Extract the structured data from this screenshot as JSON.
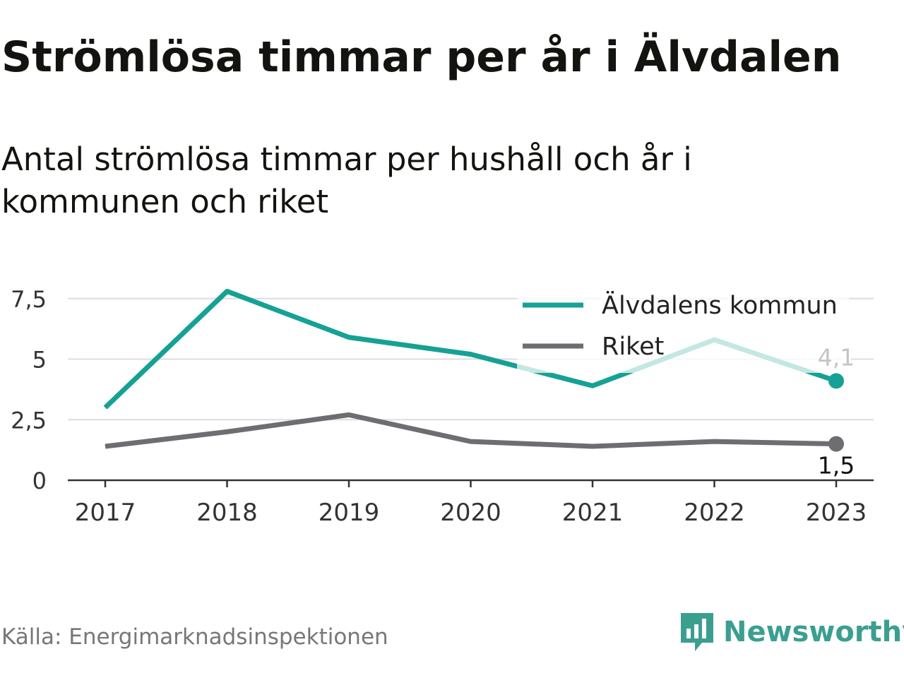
{
  "title": "Strömlösa timmar per år i Älvdalen",
  "subtitle": "Antal strömlösa timmar per hushåll och år i kommunen och riket",
  "source": "Källa: Energimarknadsinspektionen",
  "brand": "Newsworthy",
  "colors": {
    "kommun": "#16a195",
    "riket": "#6d6d72",
    "brand": "#3b9f90"
  },
  "chart_data": {
    "type": "line",
    "x": [
      "2017",
      "2018",
      "2019",
      "2020",
      "2021",
      "2022",
      "2023"
    ],
    "ylim": [
      0,
      7.8
    ],
    "yticks": [
      "0",
      "2,5",
      "5",
      "7,5"
    ],
    "ytick_values": [
      0,
      2.5,
      5,
      7.5
    ],
    "grid": true,
    "legend_position": "top-right",
    "series": [
      {
        "name": "Älvdalens kommun",
        "values": [
          3.0,
          7.8,
          5.9,
          5.2,
          3.9,
          5.8,
          4.1
        ],
        "end_label": "4,1"
      },
      {
        "name": "Riket",
        "values": [
          1.4,
          2.0,
          2.7,
          1.6,
          1.4,
          1.6,
          1.5
        ],
        "end_label": "1,5"
      }
    ]
  }
}
